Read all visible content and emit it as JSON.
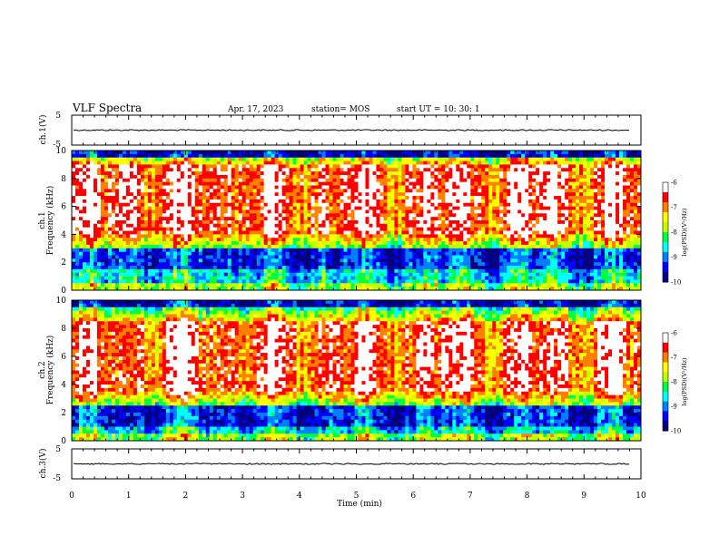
{
  "header": {
    "title": "VLF Spectra",
    "date": "Apr. 17, 2023",
    "station": "station= MOS",
    "start": "start  UT  =   10: 30: 1"
  },
  "chart_data": [
    {
      "type": "line",
      "id": "ch1-waveform",
      "ylabel": "ch.1(V)",
      "ylim": [
        -5,
        5
      ],
      "yticks": [
        "5",
        "-5"
      ],
      "trace_level": 0
    },
    {
      "type": "heatmap",
      "id": "ch1-spectrogram",
      "ylabel_line1": "ch.1",
      "ylabel_line2": "Frequency  (kHz)",
      "ylim": [
        0,
        10
      ],
      "yticks": [
        "0",
        "2",
        "4",
        "6",
        "8",
        "10"
      ],
      "xlim": [
        0,
        10
      ],
      "colorbar": {
        "min": -10,
        "max": -6,
        "ticks": [
          "-6",
          "-7",
          "-8",
          "-9",
          "-10"
        ],
        "title": "log(PSD)(V²/Hz)"
      },
      "intense_band_khz": [
        4,
        9
      ],
      "quiet_band_khz": [
        1.5,
        3
      ]
    },
    {
      "type": "heatmap",
      "id": "ch2-spectrogram",
      "ylabel_line1": "ch.2",
      "ylabel_line2": "Frequency  (kHz)",
      "ylim": [
        0,
        10
      ],
      "yticks": [
        "0",
        "2",
        "4",
        "6",
        "8",
        "10"
      ],
      "xlim": [
        0,
        10
      ],
      "colorbar": {
        "min": -10,
        "max": -6,
        "ticks": [
          "-6",
          "-7",
          "-8",
          "-9",
          "-10"
        ],
        "title": "log(PSD)(V²/Hz)"
      },
      "intense_band_khz": [
        3.5,
        8.5
      ],
      "quiet_band_khz": [
        1,
        2.5
      ]
    },
    {
      "type": "line",
      "id": "ch3-waveform",
      "ylabel": "ch.3(V)",
      "ylim": [
        -5,
        5
      ],
      "yticks": [
        "5",
        "-5"
      ],
      "trace_level": 0
    }
  ],
  "xaxis": {
    "label": "Time  (min)",
    "xlim": [
      0,
      10
    ],
    "ticks": [
      "0",
      "1",
      "2",
      "3",
      "4",
      "5",
      "6",
      "7",
      "8",
      "9",
      "10"
    ]
  },
  "colors": {
    "colormap": [
      "#000080",
      "#0000ff",
      "#0080ff",
      "#00ffff",
      "#00ff40",
      "#c0ff00",
      "#ffff00",
      "#ff8000",
      "#ff0000",
      "#ffffff"
    ]
  }
}
